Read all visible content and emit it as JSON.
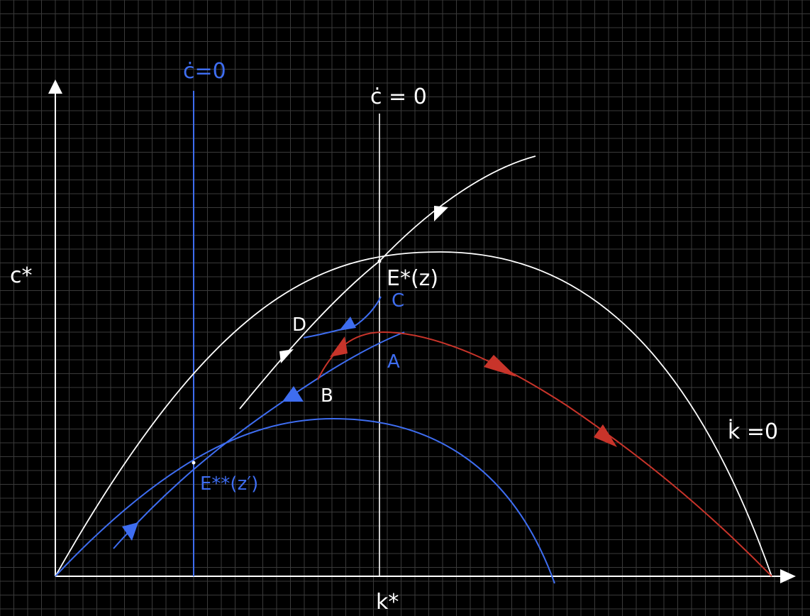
{
  "labels": {
    "y_axis": "c*",
    "x_axis": "k*",
    "cdot_zero_blue": "ċ=0",
    "cdot_zero_white": "ċ = 0",
    "kdot_zero": "k̇ =0",
    "e_star": "E*(z)",
    "e_star_star": "E**(z′)",
    "point_a": "A",
    "point_b": "B",
    "point_c": "C",
    "point_d": "D"
  },
  "colors": {
    "background": "#000000",
    "grid": "#3a3a3a",
    "white": "#ffffff",
    "blue": "#3e6df0",
    "red": "#c8342a"
  }
}
